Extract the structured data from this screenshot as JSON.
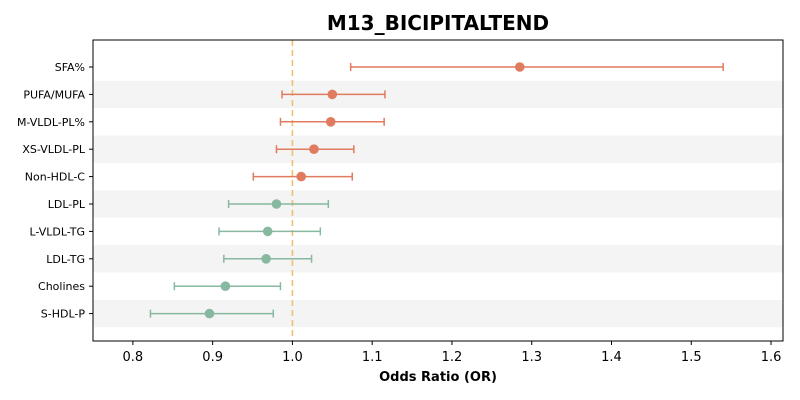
{
  "chart_data": {
    "type": "scatter",
    "title": "M13_BICIPITALTEND",
    "xlabel": "Odds Ratio (OR)",
    "ylabel": "",
    "xlim": [
      0.75,
      1.615
    ],
    "xticks": [
      0.8,
      0.9,
      1.0,
      1.1,
      1.2,
      1.3,
      1.4,
      1.5,
      1.6
    ],
    "xtick_labels": [
      "0.8",
      "0.9",
      "1.0",
      "1.1",
      "1.2",
      "1.3",
      "1.4",
      "1.5",
      "1.6"
    ],
    "reference_line": 1.0,
    "reference_color": "#f0c070",
    "row_band_color": "#f4f4f4",
    "colors": {
      "risk": "#e07b5f",
      "protective": "#88b8a0"
    },
    "points": [
      {
        "label": "SFA%",
        "or": 1.285,
        "lo": 1.073,
        "hi": 1.54,
        "group": "risk"
      },
      {
        "label": "PUFA/MUFA",
        "or": 1.05,
        "lo": 0.987,
        "hi": 1.116,
        "group": "risk"
      },
      {
        "label": "M-VLDL-PL%",
        "or": 1.048,
        "lo": 0.985,
        "hi": 1.115,
        "group": "risk"
      },
      {
        "label": "XS-VLDL-PL",
        "or": 1.027,
        "lo": 0.98,
        "hi": 1.077,
        "group": "risk"
      },
      {
        "label": "Non-HDL-C",
        "or": 1.011,
        "lo": 0.951,
        "hi": 1.075,
        "group": "risk"
      },
      {
        "label": "LDL-PL",
        "or": 0.98,
        "lo": 0.92,
        "hi": 1.045,
        "group": "protective"
      },
      {
        "label": "L-VLDL-TG",
        "or": 0.969,
        "lo": 0.908,
        "hi": 1.035,
        "group": "protective"
      },
      {
        "label": "LDL-TG",
        "or": 0.967,
        "lo": 0.914,
        "hi": 1.024,
        "group": "protective"
      },
      {
        "label": "Cholines",
        "or": 0.916,
        "lo": 0.852,
        "hi": 0.985,
        "group": "protective"
      },
      {
        "label": "S-HDL-P",
        "or": 0.896,
        "lo": 0.822,
        "hi": 0.976,
        "group": "protective"
      }
    ]
  }
}
